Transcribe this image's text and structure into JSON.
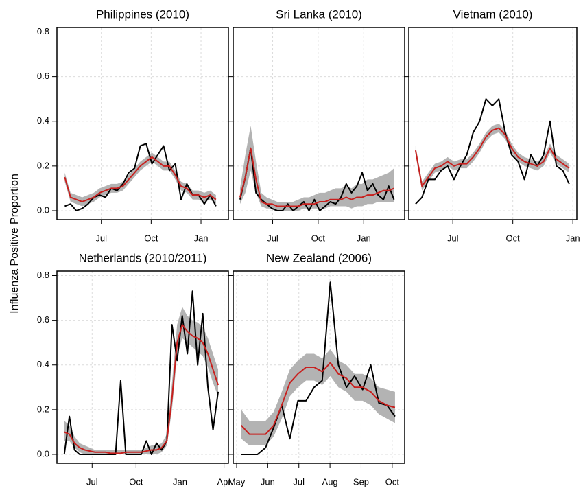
{
  "ylabel": "Influenza Positive Proportion",
  "chart_data": [
    {
      "type": "line",
      "title": "Philippines (2010)",
      "x": [
        4.8,
        5.15,
        5.5,
        5.85,
        6.2,
        6.55,
        6.9,
        7.25,
        7.6,
        7.95,
        8.3,
        8.65,
        9.0,
        9.35,
        9.7,
        10.05,
        10.4,
        10.75,
        11.1,
        11.45,
        11.8,
        12.15,
        12.5,
        12.85,
        13.2,
        13.55,
        13.9
      ],
      "xlim": [
        4.33,
        14.65
      ],
      "xticks": [
        {
          "value": 7,
          "label": "Jul"
        },
        {
          "value": 10,
          "label": "Oct"
        },
        {
          "value": 13,
          "label": "Jan"
        }
      ],
      "ylim": [
        -0.04,
        0.82
      ],
      "yticks": [
        {
          "value": 0,
          "label": "0.0"
        },
        {
          "value": 0.2,
          "label": "0.2"
        },
        {
          "value": 0.4,
          "label": "0.4"
        },
        {
          "value": 0.6,
          "label": "0.6"
        },
        {
          "value": 0.8,
          "label": "0.8"
        }
      ],
      "grid": true,
      "series": [
        {
          "color": "#000000",
          "values": [
            0.02,
            0.03,
            0.0,
            0.01,
            0.03,
            0.06,
            0.07,
            0.06,
            0.1,
            0.09,
            0.12,
            0.17,
            0.19,
            0.29,
            0.3,
            0.21,
            0.25,
            0.29,
            0.18,
            0.21,
            0.05,
            0.12,
            0.07,
            0.07,
            0.03,
            0.07,
            0.02
          ]
        },
        {
          "color": "#c8201e",
          "values": [
            0.15,
            0.06,
            0.05,
            0.04,
            0.05,
            0.06,
            0.08,
            0.09,
            0.1,
            0.1,
            0.11,
            0.14,
            0.17,
            0.2,
            0.22,
            0.24,
            0.22,
            0.2,
            0.2,
            0.16,
            0.11,
            0.1,
            0.07,
            0.07,
            0.06,
            0.07,
            0.05
          ],
          "band": {
            "color": "#b3b3b3",
            "lower": [
              0.13,
              0.04,
              0.03,
              0.02,
              0.03,
              0.04,
              0.06,
              0.07,
              0.08,
              0.08,
              0.09,
              0.12,
              0.15,
              0.18,
              0.2,
              0.22,
              0.2,
              0.18,
              0.18,
              0.14,
              0.09,
              0.08,
              0.05,
              0.05,
              0.04,
              0.05,
              0.03
            ],
            "upper": [
              0.17,
              0.08,
              0.07,
              0.06,
              0.07,
              0.08,
              0.1,
              0.11,
              0.12,
              0.12,
              0.13,
              0.16,
              0.19,
              0.22,
              0.24,
              0.26,
              0.24,
              0.22,
              0.22,
              0.18,
              0.13,
              0.12,
              0.09,
              0.09,
              0.08,
              0.09,
              0.07
            ]
          }
        }
      ]
    },
    {
      "type": "line",
      "title": "Sri Lanka (2010)",
      "x": [
        4.85,
        5.2,
        5.55,
        5.9,
        6.25,
        6.6,
        6.95,
        7.3,
        7.65,
        8.0,
        8.35,
        8.7,
        9.05,
        9.4,
        9.75,
        10.1,
        10.45,
        10.8,
        11.15,
        11.5,
        11.85,
        12.2,
        12.55,
        12.9,
        13.25,
        13.6,
        13.95,
        14.3,
        14.65,
        15.0
      ],
      "xlim": [
        4.4,
        15.7
      ],
      "xticks": [
        {
          "value": 7,
          "label": "Jul"
        },
        {
          "value": 10,
          "label": "Oct"
        },
        {
          "value": 13,
          "label": "Jan"
        }
      ],
      "ylim": [
        -0.04,
        0.82
      ],
      "yticks": [
        0,
        0.2,
        0.4,
        0.6,
        0.8
      ],
      "grid": true,
      "series": [
        {
          "color": "#000000",
          "values": [
            0.05,
            0.15,
            0.28,
            0.08,
            0.05,
            0.03,
            0.01,
            0.0,
            0.0,
            0.03,
            0.0,
            0.02,
            0.04,
            0.0,
            0.05,
            0.0,
            0.02,
            0.04,
            0.03,
            0.06,
            0.12,
            0.08,
            0.11,
            0.17,
            0.09,
            0.12,
            0.07,
            0.05,
            0.11,
            0.05
          ]
        },
        {
          "color": "#c8201e",
          "values": [
            0.06,
            0.15,
            0.28,
            0.14,
            0.04,
            0.03,
            0.03,
            0.02,
            0.02,
            0.02,
            0.02,
            0.02,
            0.03,
            0.03,
            0.03,
            0.04,
            0.04,
            0.05,
            0.05,
            0.05,
            0.06,
            0.05,
            0.06,
            0.06,
            0.07,
            0.07,
            0.08,
            0.09,
            0.09,
            0.1
          ],
          "band": {
            "color": "#b3b3b3",
            "lower": [
              0.03,
              0.08,
              0.18,
              0.08,
              0.02,
              0.01,
              0.01,
              0.0,
              0.0,
              0.0,
              0.0,
              0.0,
              0.01,
              0.01,
              0.01,
              0.01,
              0.01,
              0.02,
              0.02,
              0.02,
              0.02,
              0.01,
              0.02,
              0.02,
              0.03,
              0.03,
              0.04,
              0.04,
              0.04,
              0.04
            ],
            "upper": [
              0.1,
              0.25,
              0.38,
              0.22,
              0.08,
              0.06,
              0.05,
              0.04,
              0.04,
              0.04,
              0.04,
              0.05,
              0.06,
              0.06,
              0.07,
              0.08,
              0.08,
              0.09,
              0.1,
              0.1,
              0.11,
              0.1,
              0.12,
              0.12,
              0.14,
              0.14,
              0.15,
              0.16,
              0.17,
              0.19
            ]
          }
        }
      ]
    },
    {
      "type": "line",
      "title": "Vietnam (2010)",
      "x": [
        5.14,
        5.46,
        5.78,
        6.1,
        6.42,
        6.74,
        7.06,
        7.38,
        7.7,
        8.02,
        8.34,
        8.66,
        8.98,
        9.3,
        9.62,
        9.94,
        10.26,
        10.58,
        10.9,
        11.22,
        11.54,
        11.86,
        12.18,
        12.5,
        12.82
      ],
      "xlim": [
        4.8,
        13.2
      ],
      "xticks": [
        {
          "value": 7,
          "label": "Jul"
        },
        {
          "value": 10,
          "label": "Oct"
        },
        {
          "value": 13,
          "label": "Jan"
        }
      ],
      "ylim": [
        -0.04,
        0.82
      ],
      "yticks": [
        0,
        0.2,
        0.4,
        0.6,
        0.8
      ],
      "grid": true,
      "series": [
        {
          "color": "#000000",
          "values": [
            0.03,
            0.06,
            0.14,
            0.14,
            0.18,
            0.2,
            0.14,
            0.2,
            0.25,
            0.35,
            0.4,
            0.5,
            0.47,
            0.5,
            0.35,
            0.25,
            0.22,
            0.14,
            0.25,
            0.2,
            0.25,
            0.4,
            0.2,
            0.18,
            0.12
          ]
        },
        {
          "color": "#c8201e",
          "values": [
            0.27,
            0.11,
            0.15,
            0.19,
            0.2,
            0.22,
            0.2,
            0.21,
            0.21,
            0.24,
            0.28,
            0.33,
            0.36,
            0.37,
            0.34,
            0.28,
            0.24,
            0.22,
            0.21,
            0.2,
            0.22,
            0.28,
            0.23,
            0.21,
            0.19
          ],
          "band": {
            "color": "#b3b3b3",
            "lower": [
              0.25,
              0.09,
              0.13,
              0.17,
              0.18,
              0.2,
              0.18,
              0.19,
              0.19,
              0.22,
              0.26,
              0.31,
              0.34,
              0.35,
              0.32,
              0.26,
              0.22,
              0.2,
              0.19,
              0.18,
              0.2,
              0.26,
              0.21,
              0.19,
              0.17
            ],
            "upper": [
              0.29,
              0.13,
              0.17,
              0.21,
              0.22,
              0.24,
              0.22,
              0.23,
              0.23,
              0.26,
              0.3,
              0.35,
              0.38,
              0.39,
              0.36,
              0.3,
              0.26,
              0.24,
              0.23,
              0.22,
              0.24,
              0.3,
              0.25,
              0.23,
              0.21
            ]
          }
        }
      ]
    },
    {
      "type": "line",
      "title": "Netherlands (2010/2011)",
      "x": [
        5.1,
        5.45,
        5.8,
        6.15,
        6.5,
        6.85,
        7.2,
        7.55,
        7.9,
        8.25,
        8.6,
        8.95,
        9.3,
        9.65,
        10.0,
        10.35,
        10.7,
        11.05,
        11.4,
        11.75,
        12.1,
        12.45,
        12.8,
        13.15,
        13.5,
        13.85,
        14.2,
        14.55,
        14.9,
        15.25,
        15.6
      ],
      "xlim": [
        4.6,
        16.3
      ],
      "xticks": [
        {
          "value": 7,
          "label": "Jul"
        },
        {
          "value": 10,
          "label": "Oct"
        },
        {
          "value": 13,
          "label": "Jan"
        },
        {
          "value": 16,
          "label": "Apr"
        }
      ],
      "ylim": [
        -0.04,
        0.82
      ],
      "yticks": [
        {
          "value": 0,
          "label": "0.0"
        },
        {
          "value": 0.2,
          "label": "0.2"
        },
        {
          "value": 0.4,
          "label": "0.4"
        },
        {
          "value": 0.6,
          "label": "0.6"
        },
        {
          "value": 0.8,
          "label": "0.8"
        }
      ],
      "grid": true,
      "series": [
        {
          "color": "#000000",
          "values": [
            0.0,
            0.17,
            0.02,
            0.0,
            0.0,
            0.0,
            0.0,
            0.0,
            0.0,
            0.0,
            0.0,
            0.33,
            0.0,
            0.0,
            0.0,
            0.0,
            0.06,
            0.0,
            0.05,
            0.02,
            0.06,
            0.58,
            0.42,
            0.62,
            0.45,
            0.73,
            0.4,
            0.63,
            0.3,
            0.11,
            0.28
          ]
        },
        {
          "color": "#c8201e",
          "values": [
            0.1,
            0.09,
            0.05,
            0.03,
            0.02,
            0.015,
            0.01,
            0.01,
            0.01,
            0.005,
            0.005,
            0.005,
            0.01,
            0.01,
            0.01,
            0.01,
            0.015,
            0.02,
            0.02,
            0.03,
            0.06,
            0.25,
            0.5,
            0.58,
            0.55,
            0.53,
            0.52,
            0.5,
            0.45,
            0.38,
            0.31
          ],
          "band": {
            "color": "#b3b3b3",
            "lower": [
              0.06,
              0.06,
              0.03,
              0.01,
              0.0,
              0.0,
              0.0,
              0.0,
              0.0,
              0.0,
              0.0,
              0.0,
              0.0,
              0.0,
              0.0,
              0.0,
              0.0,
              0.0,
              0.0,
              0.01,
              0.04,
              0.2,
              0.44,
              0.52,
              0.5,
              0.48,
              0.46,
              0.44,
              0.39,
              0.32,
              0.26
            ],
            "upper": [
              0.15,
              0.13,
              0.08,
              0.05,
              0.04,
              0.03,
              0.02,
              0.02,
              0.02,
              0.02,
              0.02,
              0.02,
              0.02,
              0.02,
              0.02,
              0.02,
              0.03,
              0.04,
              0.04,
              0.05,
              0.09,
              0.32,
              0.58,
              0.66,
              0.62,
              0.6,
              0.59,
              0.57,
              0.52,
              0.45,
              0.38
            ]
          }
        }
      ]
    },
    {
      "type": "line",
      "title": "New Zealand (2006)",
      "x": [
        5.15,
        5.41,
        5.67,
        5.93,
        6.19,
        6.45,
        6.71,
        6.97,
        7.23,
        7.49,
        7.75,
        8.01,
        8.27,
        8.53,
        8.79,
        9.05,
        9.31,
        9.57,
        9.83,
        10.09
      ],
      "xlim": [
        4.89,
        10.4
      ],
      "xticks": [
        {
          "value": 5,
          "label": "May"
        },
        {
          "value": 6,
          "label": "Jun"
        },
        {
          "value": 7,
          "label": "Jul"
        },
        {
          "value": 8,
          "label": "Aug"
        },
        {
          "value": 9,
          "label": "Sep"
        },
        {
          "value": 10,
          "label": "Oct"
        }
      ],
      "ylim": [
        -0.04,
        0.82
      ],
      "yticks": [
        0,
        0.2,
        0.4,
        0.6,
        0.8
      ],
      "grid": true,
      "series": [
        {
          "color": "#000000",
          "values": [
            0.0,
            0.0,
            0.0,
            0.03,
            0.12,
            0.22,
            0.07,
            0.24,
            0.24,
            0.3,
            0.33,
            0.77,
            0.4,
            0.3,
            0.35,
            0.29,
            0.4,
            0.23,
            0.22,
            0.17
          ]
        },
        {
          "color": "#c8201e",
          "values": [
            0.13,
            0.09,
            0.09,
            0.09,
            0.13,
            0.22,
            0.32,
            0.36,
            0.39,
            0.39,
            0.37,
            0.41,
            0.36,
            0.34,
            0.3,
            0.3,
            0.28,
            0.24,
            0.22,
            0.21
          ],
          "band": {
            "color": "#b3b3b3",
            "lower": [
              0.07,
              0.04,
              0.04,
              0.04,
              0.08,
              0.16,
              0.26,
              0.3,
              0.33,
              0.33,
              0.31,
              0.35,
              0.3,
              0.28,
              0.24,
              0.24,
              0.22,
              0.18,
              0.16,
              0.14
            ],
            "upper": [
              0.2,
              0.15,
              0.15,
              0.15,
              0.19,
              0.28,
              0.38,
              0.42,
              0.45,
              0.45,
              0.43,
              0.47,
              0.42,
              0.4,
              0.36,
              0.36,
              0.34,
              0.3,
              0.29,
              0.28
            ]
          }
        }
      ]
    }
  ]
}
